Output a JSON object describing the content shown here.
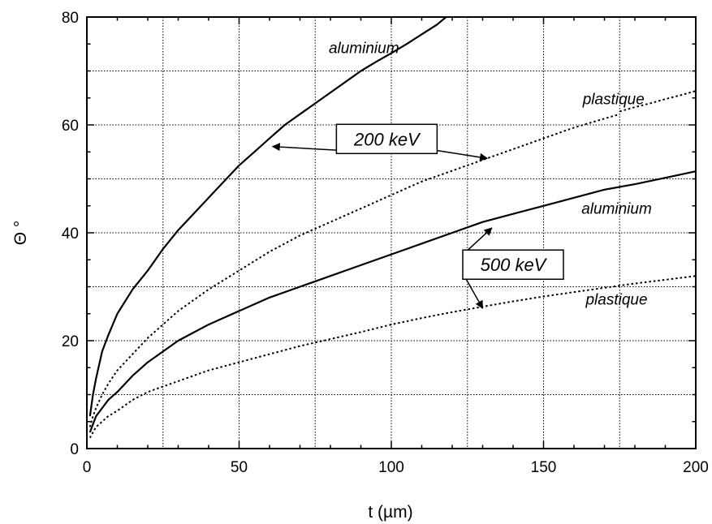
{
  "chart_data": {
    "type": "line",
    "title": "",
    "xlabel": "t (µm)",
    "ylabel": "Θ °",
    "xlim": [
      0,
      200
    ],
    "ylim": [
      0,
      80
    ],
    "x_ticks": [
      0,
      50,
      100,
      150,
      200
    ],
    "y_ticks": [
      0,
      20,
      40,
      60,
      80
    ],
    "x_tick_labels": [
      "0",
      "50",
      "100",
      "150",
      "200"
    ],
    "y_tick_labels": [
      "0",
      "20",
      "40",
      "60",
      "80"
    ],
    "grid": true,
    "series": [
      {
        "style": "solid",
        "x": [
          1,
          2,
          3,
          5,
          7,
          10,
          15,
          20,
          25,
          30,
          35,
          40,
          45,
          50,
          55,
          60,
          65,
          70,
          75,
          80,
          85,
          90,
          95,
          100,
          105,
          110,
          115,
          118
        ],
        "y": [
          6,
          10,
          13,
          18,
          21,
          25,
          29.5,
          33,
          37,
          40.5,
          43.5,
          46.5,
          49.5,
          52.5,
          55,
          57.5,
          60,
          62,
          64,
          66,
          68,
          70,
          71.7,
          73.3,
          75,
          76.8,
          78.6,
          80
        ]
      },
      {
        "style": "dotted",
        "x": [
          1,
          2,
          3,
          5,
          7,
          10,
          15,
          20,
          30,
          40,
          50,
          60,
          70,
          80,
          90,
          100,
          110,
          120,
          130,
          140,
          150,
          160,
          175
        ],
        "y": [
          4,
          6,
          7.5,
          10,
          12,
          14.5,
          17.5,
          20.5,
          25.5,
          29.5,
          33,
          36.5,
          39.5,
          42,
          44.5,
          47,
          49.5,
          51.5,
          53.5,
          55.5,
          57.5,
          59.5,
          62
        ]
      },
      {
        "style": "dotted",
        "x": [
          175,
          180,
          185,
          190,
          195,
          200
        ],
        "y": [
          62.5,
          63.3,
          64,
          64.8,
          65.5,
          66.3
        ]
      },
      {
        "style": "solid",
        "x": [
          1,
          2,
          3,
          5,
          7,
          10,
          15,
          20,
          30,
          40,
          50,
          60,
          70,
          80,
          90,
          100,
          110,
          120,
          130,
          140,
          150,
          160,
          170,
          180,
          190,
          200
        ],
        "y": [
          3,
          4.5,
          6,
          7.5,
          9,
          10.5,
          13.5,
          16,
          20,
          23,
          25.5,
          28,
          30,
          32,
          34,
          36,
          38,
          40,
          42,
          43.5,
          45,
          46.5,
          48,
          49,
          50.2,
          51.4
        ]
      },
      {
        "style": "dotted",
        "x": [
          1,
          2,
          3,
          5,
          7,
          10,
          15,
          20,
          30,
          40,
          50,
          60,
          70,
          80,
          90,
          100,
          110,
          120,
          130,
          140,
          150,
          160,
          170,
          180,
          190,
          200
        ],
        "y": [
          2,
          3,
          4,
          5,
          6,
          7,
          9,
          10.5,
          12.5,
          14.5,
          16,
          17.5,
          19,
          20.3,
          21.6,
          23,
          24.2,
          25.3,
          26.3,
          27.3,
          28.2,
          29,
          29.8,
          30.6,
          31.3,
          32
        ]
      }
    ],
    "annotations": [
      {
        "text": "aluminium",
        "x": 91,
        "y": 73.3
      },
      {
        "text": "plastique",
        "x": 173,
        "y": 63.8
      },
      {
        "text": "aluminium",
        "x": 174,
        "y": 43.5
      },
      {
        "text": "plastique",
        "x": 174,
        "y": 26.7
      }
    ],
    "boxed_labels": [
      {
        "text": "200 keV",
        "x": 98.5,
        "y": 57.4,
        "arrow_targets": [
          {
            "x": 61,
            "y": 56
          },
          {
            "x": 131.5,
            "y": 53.8
          }
        ]
      },
      {
        "text": "500 keV",
        "x": 140,
        "y": 34.1,
        "arrow_targets": [
          {
            "x": 133,
            "y": 40.9
          },
          {
            "x": 130,
            "y": 26
          }
        ]
      }
    ]
  }
}
